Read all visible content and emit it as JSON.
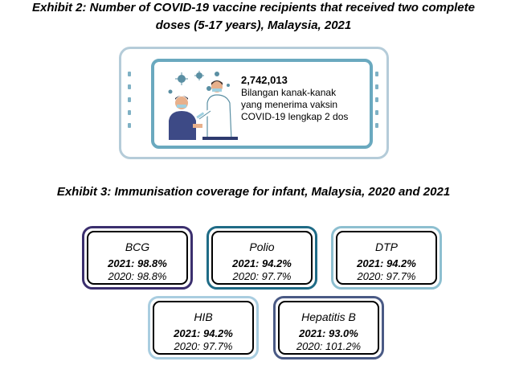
{
  "exhibit2": {
    "title_line1": "Exhibit 2: Number of COVID-19 vaccine recipients that received two complete",
    "title_line2": "doses (5-17 years), Malaysia, 2021",
    "stat_value": "2,742,013",
    "stat_desc_line1": "Bilangan kanak-kanak",
    "stat_desc_line2": "yang menerima vaksin",
    "stat_desc_line3": "COVID-19 lengkap 2 dos"
  },
  "exhibit3": {
    "title": "Exhibit 3: Immunisation coverage for infant, Malaysia, 2020 and 2021",
    "items": [
      {
        "name": "BCG",
        "y2021": "2021: 98.8%",
        "y2020": "2020: 98.8%",
        "color": "#3b2f6e"
      },
      {
        "name": "Polio",
        "y2021": "2021: 94.2%",
        "y2020": "2020: 97.7%",
        "color": "#1f6b86"
      },
      {
        "name": "DTP",
        "y2021": "2021: 94.2%",
        "y2020": "2020: 97.7%",
        "color": "#8dbfd0"
      },
      {
        "name": "HIB",
        "y2021": "2021: 94.2%",
        "y2020": "2020: 97.7%",
        "color": "#a9cde0"
      },
      {
        "name": "Hepatitis B",
        "y2021": "2021: 93.0%",
        "y2020": "2020: 101.2%",
        "color": "#4a5a85"
      }
    ]
  }
}
